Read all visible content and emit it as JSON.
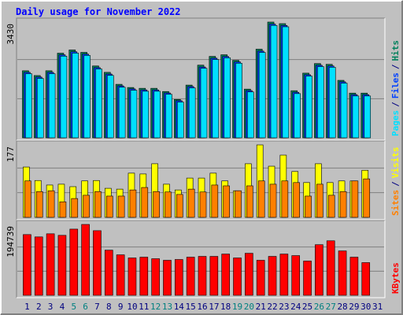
{
  "chart_data": [
    {
      "type": "bar",
      "title": "Daily usage for November 2022",
      "ylim": [
        0,
        3430
      ],
      "yticks": [
        3430
      ],
      "legend_separator": "/",
      "series": [
        {
          "name": "Pages",
          "color": "#00e0ff",
          "values": [
            1900,
            1760,
            1900,
            2420,
            2510,
            2440,
            2040,
            1850,
            1500,
            1410,
            1380,
            1380,
            1290,
            1060,
            1480,
            2060,
            2320,
            2370,
            2210,
            1360,
            2530,
            3330,
            3290,
            1310,
            1830,
            2110,
            2090,
            1620,
            1240,
            1240,
            null
          ]
        },
        {
          "name": "Files",
          "color": "#0040ff",
          "values": [
            1940,
            1800,
            1940,
            2460,
            2550,
            2480,
            2080,
            1890,
            1540,
            1450,
            1420,
            1420,
            1330,
            1100,
            1520,
            2100,
            2360,
            2410,
            2250,
            1400,
            2570,
            3370,
            3330,
            1350,
            1870,
            2150,
            2130,
            1660,
            1280,
            1280,
            null
          ]
        },
        {
          "name": "Hits",
          "color": "#00805c",
          "values": [
            1987,
            1845,
            1987,
            2508,
            2603,
            2532,
            2129,
            1940,
            1585,
            1491,
            1467,
            1467,
            1372,
            1136,
            1562,
            2153,
            2413,
            2461,
            2295,
            1443,
            2626,
            3430,
            3383,
            1396,
            1916,
            2200,
            2177,
            1703,
            1325,
            1325,
            null
          ]
        }
      ]
    },
    {
      "type": "bar",
      "ylim": [
        0,
        177
      ],
      "yticks": [
        177
      ],
      "legend_separator": "/",
      "series": [
        {
          "name": "Sites",
          "color": "#ff8000",
          "values": [
            89,
            63,
            65,
            38,
            46,
            54,
            63,
            52,
            52,
            67,
            73,
            63,
            62,
            56,
            69,
            62,
            79,
            77,
            65,
            77,
            89,
            81,
            89,
            85,
            52,
            81,
            54,
            63,
            89,
            94,
            null
          ]
        },
        {
          "name": "Visits",
          "color": "#ffff00",
          "values": [
            123,
            90,
            79,
            81,
            75,
            89,
            90,
            71,
            69,
            108,
            106,
            131,
            81,
            67,
            96,
            96,
            108,
            89,
            65,
            131,
            177,
            125,
            152,
            112,
            85,
            131,
            85,
            89,
            89,
            115,
            null
          ]
        }
      ]
    },
    {
      "type": "bar",
      "ylim": [
        0,
        194739
      ],
      "yticks": [
        194739
      ],
      "series": [
        {
          "name": "KBytes",
          "color": "#ff0000",
          "values": [
            166920,
            160500,
            169060,
            164780,
            181900,
            194739,
            177620,
            124120,
            111280,
            102720,
            104860,
            100580,
            96300,
            98440,
            104860,
            107000,
            107000,
            113420,
            102720,
            115560,
            96300,
            107000,
            113420,
            109140,
            94160,
            139100,
            149800,
            121980,
            104860,
            89880,
            null
          ]
        }
      ],
      "categories": [
        "1",
        "2",
        "3",
        "4",
        "5",
        "6",
        "7",
        "8",
        "9",
        "10",
        "11",
        "12",
        "13",
        "14",
        "15",
        "16",
        "17",
        "18",
        "19",
        "20",
        "21",
        "22",
        "23",
        "24",
        "25",
        "26",
        "27",
        "28",
        "29",
        "30",
        "31"
      ],
      "category_colors": [
        "#000080",
        "#000080",
        "#000080",
        "#000080",
        "#008080",
        "#008080",
        "#000080",
        "#000080",
        "#000080",
        "#000080",
        "#000080",
        "#008080",
        "#008080",
        "#000080",
        "#000080",
        "#000080",
        "#000080",
        "#000080",
        "#008080",
        "#008080",
        "#000080",
        "#000080",
        "#000080",
        "#000080",
        "#000080",
        "#008080",
        "#008080",
        "#000080",
        "#000080",
        "#000080",
        "#000080"
      ]
    }
  ]
}
